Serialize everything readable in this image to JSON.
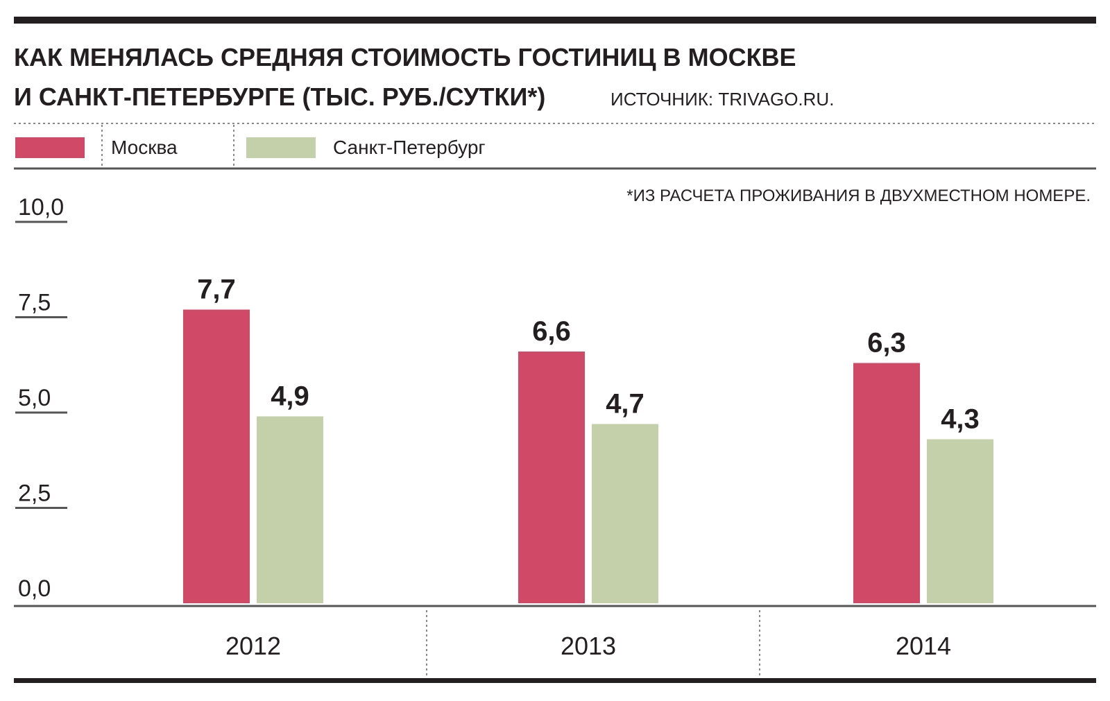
{
  "header": {
    "title_line1": "КАК МЕНЯЛАСЬ СРЕДНЯЯ  СТОИМОСТЬ ГОСТИНИЦ  В  МОСКВЕ",
    "title_line2": "И САНКТ-ПЕТЕРБУРГЕ (ТЫС. РУБ./СУТКИ*)",
    "source": "ИСТОЧНИК: TRIVAGO.RU."
  },
  "footnote": "*ИЗ РАСЧЕТА ПРОЖИВАНИЯ В ДВУХМЕСТНОМ НОМЕРЕ.",
  "colors": {
    "moscow": "#d04a67",
    "spb": "#c3d0aa",
    "ink": "#231f20",
    "axis": "#555555"
  },
  "chart_data": {
    "type": "bar",
    "categories": [
      "2012",
      "2013",
      "2014"
    ],
    "series": [
      {
        "name": "Москва",
        "values": [
          7.7,
          6.6,
          6.3
        ],
        "value_labels": [
          "7,7",
          "6,6",
          "6,3"
        ]
      },
      {
        "name": "Санкт-Петербург",
        "values": [
          4.9,
          4.7,
          4.3
        ],
        "value_labels": [
          "4,9",
          "4,7",
          "4,3"
        ]
      }
    ],
    "ylim": [
      0,
      10
    ],
    "yticks": [
      0,
      2.5,
      5,
      7.5,
      10
    ],
    "ytick_labels": [
      "0,0",
      "2,5",
      "5,0",
      "7,5",
      "10,0"
    ],
    "legend_position": "top-left",
    "grid": false
  }
}
